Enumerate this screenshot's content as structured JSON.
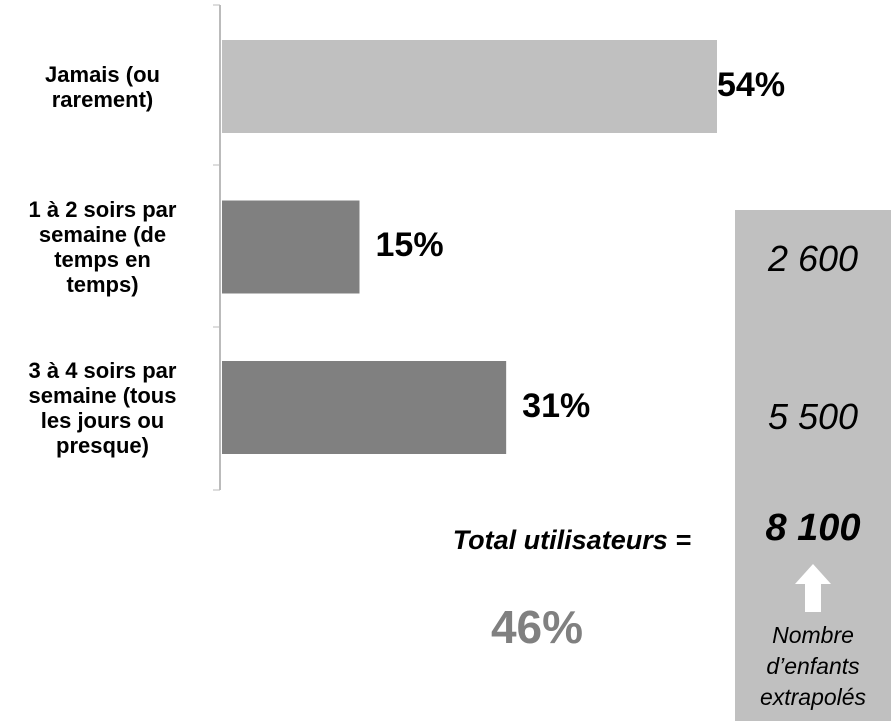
{
  "chart_data": {
    "type": "bar",
    "orientation": "horizontal",
    "categories": [
      "Jamais (ou rarement)",
      "1 à 2 soirs par semaine (de temps en temps)",
      "3 à 4 soirs par semaine (tous les jours ou presque)"
    ],
    "values": [
      54,
      15,
      31
    ],
    "value_labels": [
      "54%",
      "15%",
      "31%"
    ],
    "colors": [
      "#c0c0c0",
      "#808080",
      "#808080"
    ],
    "annotations": {
      "total_label": "Total utilisateurs =",
      "total_value": "46%",
      "panel_values": [
        "2 600",
        "5 500",
        "8 100"
      ],
      "panel_caption": "Nombre d’enfants extrapolés"
    }
  }
}
